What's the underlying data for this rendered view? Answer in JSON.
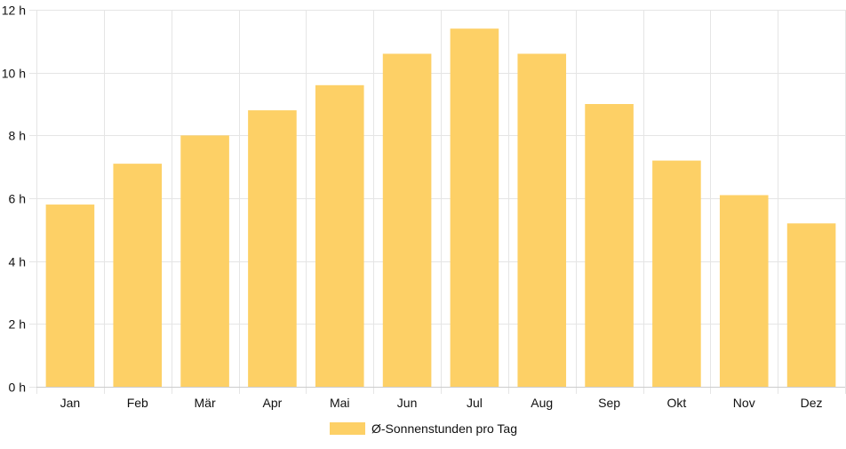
{
  "chart_data": {
    "type": "bar",
    "title": "",
    "xlabel": "",
    "ylabel": "",
    "categories": [
      "Jan",
      "Feb",
      "Mär",
      "Apr",
      "Mai",
      "Jun",
      "Jul",
      "Aug",
      "Sep",
      "Okt",
      "Nov",
      "Dez"
    ],
    "series": [
      {
        "name": "Ø-Sonnenstunden pro Tag",
        "color": "#fdd066",
        "values": [
          5.8,
          7.1,
          8.0,
          8.8,
          9.6,
          10.6,
          11.4,
          10.6,
          9.0,
          7.2,
          6.1,
          5.2
        ]
      }
    ],
    "ylim": [
      0,
      12
    ],
    "yticks": [
      0,
      2,
      4,
      6,
      8,
      10,
      12
    ],
    "ytick_labels": [
      "0 h",
      "2 h",
      "4 h",
      "6 h",
      "8 h",
      "10 h",
      "12 h"
    ],
    "grid": true,
    "legend": {
      "position": "bottom-center",
      "entries": [
        "Ø-Sonnenstunden pro Tag"
      ]
    },
    "colors": {
      "bar": "#fdd066",
      "grid": "#e5e5e5",
      "axis": "#cccccc",
      "text": "#111111"
    }
  }
}
